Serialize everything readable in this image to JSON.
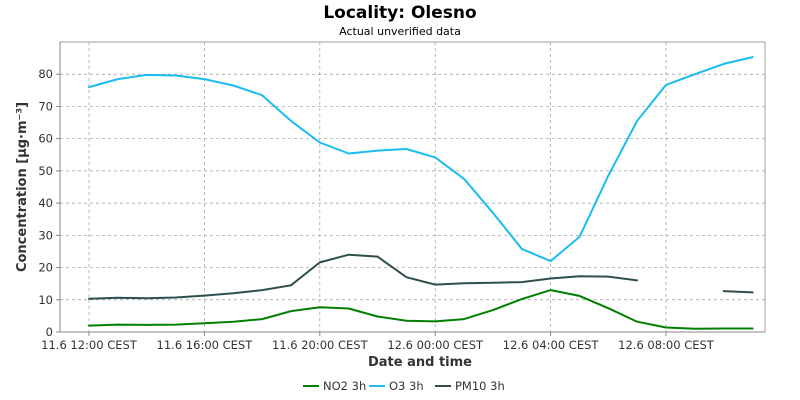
{
  "chart_data": {
    "type": "line",
    "title": "Locality: Olesno",
    "subtitle": "Actual unverified data",
    "xlabel": "Date and time",
    "ylabel": "Concentration [µg·m⁻³]",
    "ylim": [
      0,
      90
    ],
    "yticks": [
      0,
      10,
      20,
      30,
      40,
      50,
      60,
      70,
      80
    ],
    "x": [
      "11.6 12:00",
      "11.6 13:00",
      "11.6 14:00",
      "11.6 15:00",
      "11.6 16:00",
      "11.6 17:00",
      "11.6 18:00",
      "11.6 19:00",
      "11.6 20:00",
      "11.6 21:00",
      "11.6 22:00",
      "11.6 23:00",
      "12.6 00:00",
      "12.6 01:00",
      "12.6 02:00",
      "12.6 03:00",
      "12.6 04:00",
      "12.6 05:00",
      "12.6 06:00",
      "12.6 07:00",
      "12.6 08:00",
      "12.6 09:00",
      "12.6 10:00",
      "12.6 11:00"
    ],
    "xticks": [
      {
        "index": 0,
        "label": "11.6 12:00 CEST"
      },
      {
        "index": 4,
        "label": "11.6 16:00 CEST"
      },
      {
        "index": 8,
        "label": "11.6 20:00 CEST"
      },
      {
        "index": 12,
        "label": "12.6 00:00 CEST"
      },
      {
        "index": 16,
        "label": "12.6 04:00 CEST"
      },
      {
        "index": 20,
        "label": "12.6 08:00 CEST"
      }
    ],
    "grid": true,
    "legend_position": "bottom-center",
    "series": [
      {
        "name": "NO2 3h",
        "color": "#008000",
        "values": [
          2.0,
          2.3,
          2.2,
          2.3,
          2.7,
          3.2,
          4.0,
          6.5,
          7.7,
          7.3,
          4.8,
          3.5,
          3.3,
          4.0,
          6.8,
          10.2,
          13.0,
          11.2,
          7.4,
          3.2,
          1.4,
          1.0,
          1.1,
          1.1
        ]
      },
      {
        "name": "O3 3h",
        "color": "#1bbcf0",
        "values": [
          76.0,
          78.5,
          79.8,
          79.6,
          78.5,
          76.5,
          73.5,
          65.5,
          58.8,
          55.4,
          56.3,
          56.8,
          54.2,
          47.5,
          37.0,
          25.8,
          22.0,
          29.5,
          48.5,
          65.5,
          76.7,
          80.0,
          83.2,
          85.3
        ]
      },
      {
        "name": "PM10 3h",
        "color": "#2f4f4f",
        "values": [
          10.3,
          10.6,
          10.5,
          10.7,
          11.3,
          12.0,
          13.0,
          14.5,
          21.6,
          24.0,
          23.4,
          17.0,
          14.7,
          15.1,
          15.3,
          15.5,
          16.6,
          17.3,
          17.2,
          16.0,
          null,
          null,
          12.7,
          12.3
        ]
      }
    ]
  }
}
